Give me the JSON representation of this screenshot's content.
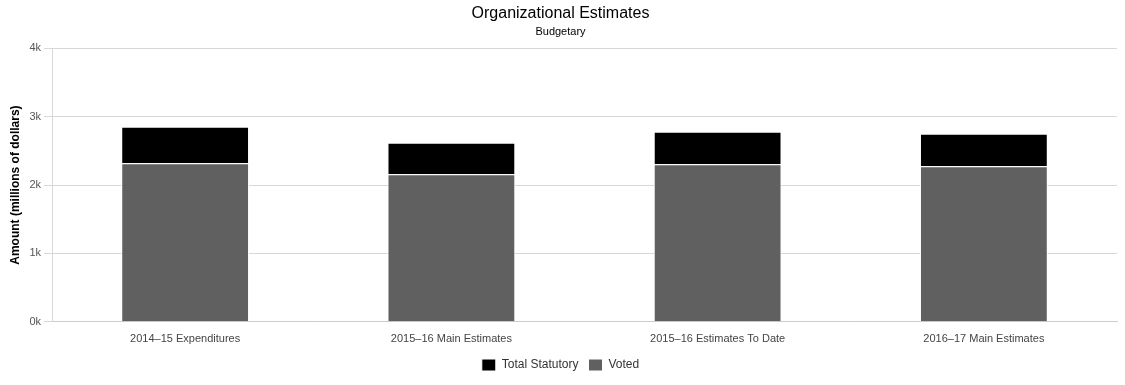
{
  "chart_data": {
    "type": "bar",
    "title": "Organizational Estimates",
    "subtitle": "Budgetary",
    "y_label": "Amount (millions of dollars)",
    "categories": [
      "2014–15 Expenditures",
      "2015–16 Main Estimates",
      "2015–16 Estimates To Date",
      "2016–17 Main Estimates"
    ],
    "series": [
      {
        "name": "Voted",
        "color": "#606060",
        "values": [
          2320,
          2160,
          2305,
          2275
        ]
      },
      {
        "name": "Total Statutory",
        "color": "#000000",
        "values": [
          535,
          460,
          475,
          475
        ]
      }
    ],
    "stacked": true,
    "ylim": [
      0,
      4000
    ],
    "yticks": [
      {
        "value": 0,
        "label": "0k"
      },
      {
        "value": 1000,
        "label": "1k"
      },
      {
        "value": 2000,
        "label": "2k"
      },
      {
        "value": 3000,
        "label": "3k"
      },
      {
        "value": 4000,
        "label": "4k"
      }
    ],
    "grid": true,
    "legend": "bottom"
  }
}
